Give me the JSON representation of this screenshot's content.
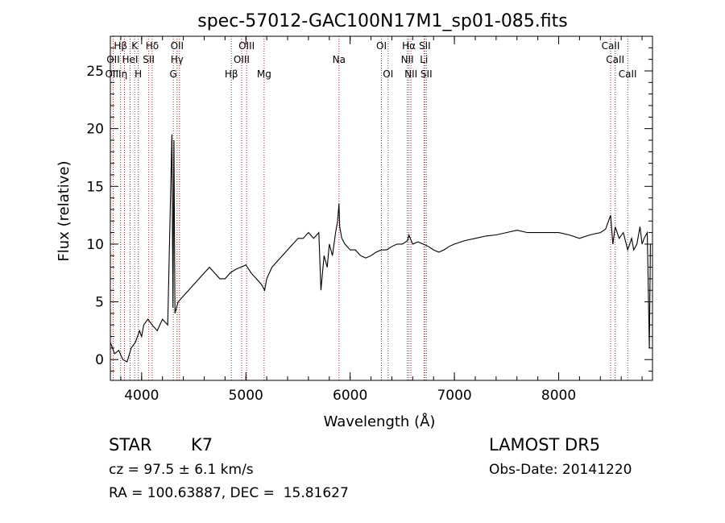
{
  "chart_data": {
    "type": "line",
    "title": "spec-57012-GAC100N17M1_sp01-085.fits",
    "xlabel": "Wavelength (Å)",
    "ylabel": "Flux (relative)",
    "xlim": [
      3700,
      8900
    ],
    "ylim": [
      -1.8,
      28
    ],
    "x_ticks": [
      4000,
      5000,
      6000,
      7000,
      8000
    ],
    "y_ticks": [
      0,
      5,
      10,
      15,
      20,
      25
    ],
    "grid": false,
    "series": [
      {
        "x": [
          3700,
          3740,
          3780,
          3820,
          3860,
          3900,
          3940,
          3980,
          4000,
          4020,
          4060,
          4100,
          4150,
          4200,
          4250,
          4290,
          4300,
          4310,
          4320,
          4350,
          4400,
          4450,
          4500,
          4550,
          4600,
          4650,
          4700,
          4750,
          4800,
          4850,
          4900,
          4950,
          5000,
          5050,
          5100,
          5150,
          5180,
          5200,
          5250,
          5300,
          5350,
          5400,
          5450,
          5500,
          5550,
          5600,
          5650,
          5700,
          5720,
          5750,
          5780,
          5800,
          5830,
          5860,
          5880,
          5893,
          5900,
          5920,
          5950,
          6000,
          6050,
          6100,
          6150,
          6200,
          6250,
          6300,
          6350,
          6400,
          6450,
          6500,
          6550,
          6563,
          6600,
          6650,
          6700,
          6750,
          6800,
          6850,
          6900,
          6950,
          7000,
          7100,
          7200,
          7300,
          7400,
          7500,
          7600,
          7700,
          7800,
          7900,
          8000,
          8100,
          8200,
          8300,
          8400,
          8450,
          8498,
          8520,
          8542,
          8580,
          8620,
          8662,
          8700,
          8720,
          8750,
          8780,
          8800,
          8820,
          8850,
          8870,
          8880
        ],
        "y": [
          1.5,
          0.5,
          0.8,
          0.0,
          -0.2,
          1.0,
          1.5,
          2.5,
          2.0,
          3.0,
          3.5,
          3.0,
          2.5,
          3.5,
          3.0,
          19.5,
          4.5,
          19.0,
          4.0,
          5.0,
          5.5,
          6.0,
          6.5,
          7.0,
          7.5,
          8.0,
          7.5,
          7.0,
          7.0,
          7.5,
          7.8,
          8.0,
          8.2,
          7.5,
          7.0,
          6.5,
          6.0,
          7.0,
          8.0,
          8.5,
          9.0,
          9.5,
          10.0,
          10.5,
          10.5,
          11.0,
          10.5,
          11.0,
          6.0,
          9.0,
          8.0,
          10.0,
          9.0,
          11.0,
          12.0,
          13.5,
          11.5,
          10.5,
          10.0,
          9.5,
          9.5,
          9.0,
          8.8,
          9.0,
          9.3,
          9.5,
          9.5,
          9.8,
          10.0,
          10.0,
          10.3,
          10.8,
          10.0,
          10.2,
          10.0,
          9.8,
          9.5,
          9.3,
          9.5,
          9.8,
          10.0,
          10.3,
          10.5,
          10.7,
          10.8,
          11.0,
          11.2,
          11.0,
          11.0,
          11.0,
          11.0,
          10.8,
          10.5,
          10.8,
          11.0,
          11.3,
          12.5,
          10.0,
          11.5,
          10.5,
          11.0,
          9.5,
          10.5,
          9.5,
          10.0,
          11.5,
          10.0,
          10.5,
          11.0,
          1.0,
          10.0
        ]
      }
    ],
    "line_markers": [
      {
        "label": "Hβ",
        "x": 3798,
        "row": 0
      },
      {
        "label": "K",
        "x": 3933,
        "row": 0
      },
      {
        "label": "Hδ",
        "x": 4101,
        "row": 0
      },
      {
        "label": "OII",
        "x": 4340,
        "row": 0
      },
      {
        "label": "OIII",
        "x": 5007,
        "row": 0
      },
      {
        "label": "OI",
        "x": 6300,
        "row": 0
      },
      {
        "label": "Hα",
        "x": 6563,
        "row": 0
      },
      {
        "label": "SII",
        "x": 6716,
        "row": 0
      },
      {
        "label": "CaII",
        "x": 8498,
        "row": 0
      },
      {
        "label": "OII",
        "x": 3727,
        "row": 1
      },
      {
        "label": "HeI",
        "x": 3889,
        "row": 1
      },
      {
        "label": "SII",
        "x": 4068,
        "row": 1
      },
      {
        "label": "Hγ",
        "x": 4340,
        "row": 1
      },
      {
        "label": "OIII",
        "x": 4959,
        "row": 1
      },
      {
        "label": "Na",
        "x": 5893,
        "row": 1
      },
      {
        "label": "NII",
        "x": 6548,
        "row": 1
      },
      {
        "label": "Li",
        "x": 6708,
        "row": 1
      },
      {
        "label": "CaII",
        "x": 8542,
        "row": 1
      },
      {
        "label": "OIII",
        "x": 3727,
        "row": 2
      },
      {
        "label": "η",
        "x": 3835,
        "row": 2
      },
      {
        "label": "H",
        "x": 3968,
        "row": 2
      },
      {
        "label": "G",
        "x": 4304,
        "row": 2
      },
      {
        "label": "Hβ",
        "x": 4861,
        "row": 2
      },
      {
        "label": "Mg",
        "x": 5175,
        "row": 2
      },
      {
        "label": "OI",
        "x": 6364,
        "row": 2
      },
      {
        "label": "NII",
        "x": 6583,
        "row": 2
      },
      {
        "label": "SII",
        "x": 6731,
        "row": 2
      },
      {
        "label": "CaII",
        "x": 8662,
        "row": 2
      }
    ],
    "marker_lines_x": [
      3727,
      3798,
      3835,
      3889,
      3933,
      3968,
      4068,
      4101,
      4304,
      4340,
      4363,
      4861,
      4959,
      5007,
      5175,
      5893,
      6300,
      6364,
      6548,
      6563,
      6583,
      6708,
      6716,
      6731,
      8498,
      8542,
      8662
    ]
  },
  "info": {
    "object_class": "STAR",
    "subclass": "K7",
    "survey": "LAMOST DR5",
    "cz": "cz = 97.5 ± 6.1 km/s",
    "obs_date": "Obs-Date: 20141220",
    "coords": "RA = 100.63887, DEC =  15.81627"
  },
  "colors": {
    "spectrum": "#000000",
    "marker_line": "#b22222",
    "axis": "#000000"
  }
}
